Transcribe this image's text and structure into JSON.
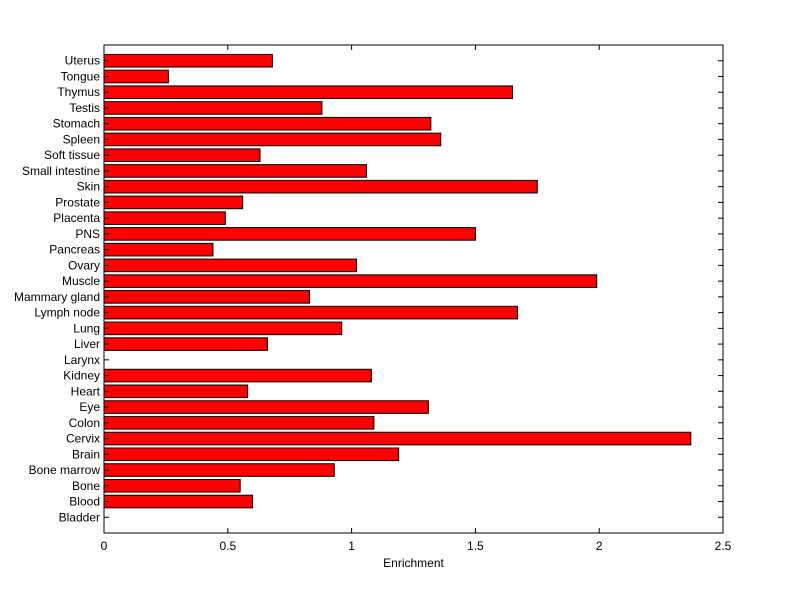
{
  "chart_data": {
    "type": "bar",
    "orientation": "horizontal",
    "categories": [
      "Bladder",
      "Blood",
      "Bone",
      "Bone marrow",
      "Brain",
      "Cervix",
      "Colon",
      "Eye",
      "Heart",
      "Kidney",
      "Larynx",
      "Liver",
      "Lung",
      "Lymph node",
      "Mammary gland",
      "Muscle",
      "Ovary",
      "Pancreas",
      "PNS",
      "Placenta",
      "Prostate",
      "Skin",
      "Small intestine",
      "Soft tissue",
      "Spleen",
      "Stomach",
      "Testis",
      "Thymus",
      "Tongue",
      "Uterus"
    ],
    "values": [
      0,
      0.6,
      0.55,
      0.93,
      1.19,
      2.37,
      1.09,
      1.31,
      0.58,
      1.08,
      0,
      0.66,
      0.96,
      1.67,
      0.83,
      1.99,
      1.02,
      0.44,
      1.5,
      0.49,
      0.56,
      1.75,
      1.06,
      0.63,
      1.36,
      1.32,
      0.88,
      1.65,
      0.26,
      0.68
    ],
    "bar_color": "#ff0000",
    "edge_color": "#000000",
    "title": "",
    "xlabel": "Enrichment",
    "ylabel": "",
    "xlim": [
      0,
      2.5
    ],
    "xticks": [
      "0",
      "0.5",
      "1",
      "1.5",
      "2",
      "2.5"
    ],
    "grid": false,
    "legend": "none"
  }
}
